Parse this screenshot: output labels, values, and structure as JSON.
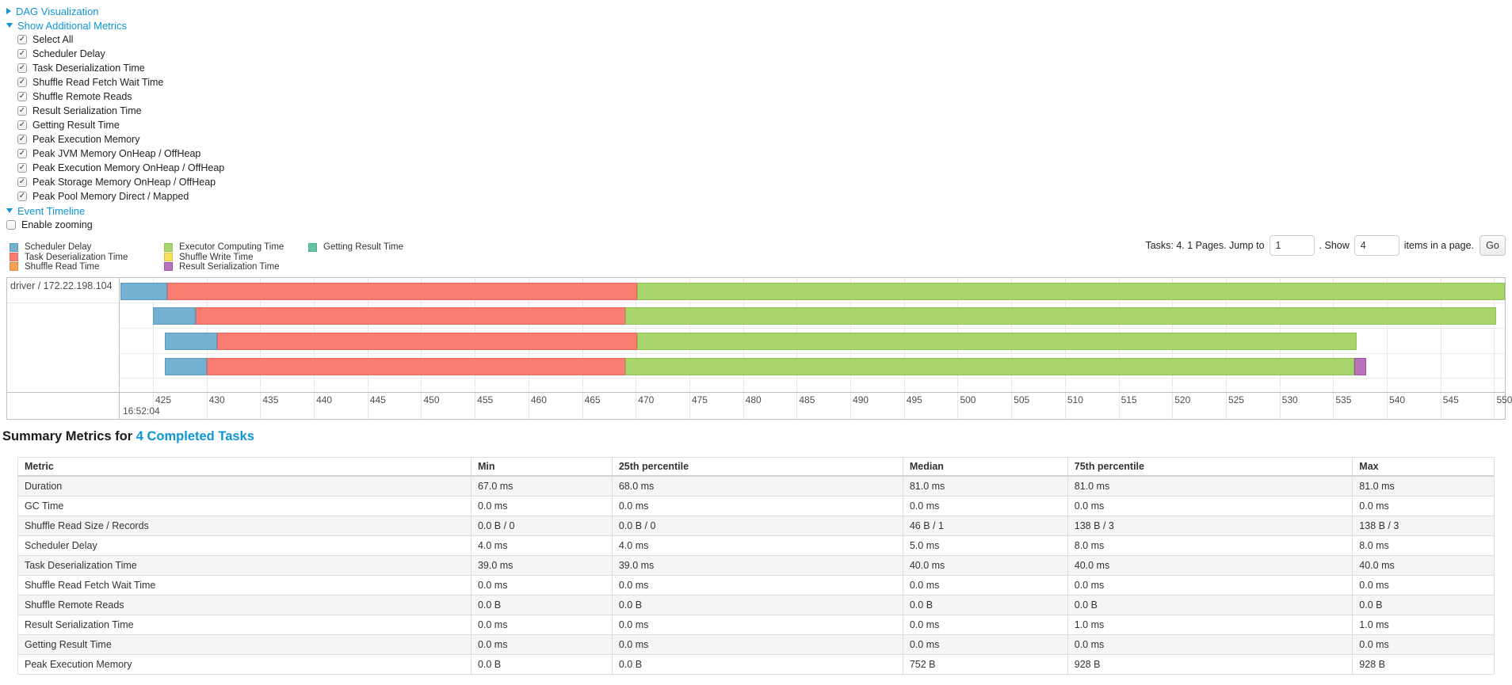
{
  "controls": {
    "dag_label": "DAG Visualization",
    "metrics_label": "Show Additional Metrics",
    "timeline_label": "Event Timeline",
    "enable_zooming_label": "Enable zooming",
    "checkboxes": [
      "Select All",
      "Scheduler Delay",
      "Task Deserialization Time",
      "Shuffle Read Fetch Wait Time",
      "Shuffle Remote Reads",
      "Result Serialization Time",
      "Getting Result Time",
      "Peak Execution Memory",
      "Peak JVM Memory OnHeap / OffHeap",
      "Peak Execution Memory OnHeap / OffHeap",
      "Peak Storage Memory OnHeap / OffHeap",
      "Peak Pool Memory Direct / Mapped"
    ]
  },
  "colors": {
    "link": "#0d96d8",
    "scheduler_delay": {
      "label": "Scheduler Delay",
      "fill": "#74B0D0",
      "border": "#5B9BC2"
    },
    "task_deserialization": {
      "label": "Task Deserialization Time",
      "fill": "#F97D73",
      "border": "#E7685F"
    },
    "shuffle_read": {
      "label": "Shuffle Read Time",
      "fill": "#F7A056",
      "border": "#E0873A"
    },
    "executor_computing": {
      "label": "Executor Computing Time",
      "fill": "#A8D46C",
      "border": "#90C351"
    },
    "shuffle_write": {
      "label": "Shuffle Write Time",
      "fill": "#F4E05A",
      "border": "#DCC83F"
    },
    "result_serialization": {
      "label": "Result Serialization Time",
      "fill": "#B873BC",
      "border": "#9E54A4"
    },
    "getting_result": {
      "label": "Getting Result Time",
      "fill": "#66C3A5",
      "border": "#4FB08D"
    }
  },
  "legend_columns": [
    [
      "scheduler_delay",
      "task_deserialization",
      "shuffle_read"
    ],
    [
      "executor_computing",
      "shuffle_write",
      "result_serialization"
    ],
    [
      "getting_result"
    ]
  ],
  "pagination": {
    "tasks_text": "Tasks: 4. 1 Pages. Jump to",
    "jump_value": "1",
    "show_text": ". Show",
    "show_value": "4",
    "items_text": "items in a page.",
    "go_label": "Go"
  },
  "timeline": {
    "group_label": "driver / 172.22.198.104",
    "axis": {
      "min": 421.9,
      "max": 551.0,
      "ticks": [
        425,
        430,
        435,
        440,
        445,
        450,
        455,
        460,
        465,
        470,
        475,
        480,
        485,
        490,
        495,
        500,
        505,
        510,
        515,
        520,
        525,
        530,
        535,
        540,
        545,
        550
      ],
      "time_label": "16:52:04",
      "time_label_tick": 425
    },
    "bars": [
      {
        "segments": [
          [
            "scheduler_delay",
            422.0,
            426.3
          ],
          [
            "task_deserialization",
            426.3,
            470.1
          ],
          [
            "executor_computing",
            470.1,
            551.0
          ]
        ]
      },
      {
        "segments": [
          [
            "scheduler_delay",
            425.0,
            429.0
          ],
          [
            "task_deserialization",
            429.0,
            469.0
          ],
          [
            "executor_computing",
            469.0,
            550.2
          ]
        ]
      },
      {
        "segments": [
          [
            "scheduler_delay",
            426.1,
            431.0
          ],
          [
            "task_deserialization",
            431.0,
            470.1
          ],
          [
            "executor_computing",
            470.1,
            537.2
          ]
        ]
      },
      {
        "segments": [
          [
            "scheduler_delay",
            426.1,
            430.0
          ],
          [
            "task_deserialization",
            430.0,
            469.0
          ],
          [
            "executor_computing",
            469.0,
            537.0
          ],
          [
            "result_serialization",
            537.0,
            538.1
          ]
        ]
      }
    ]
  },
  "summary": {
    "title_prefix": "Summary Metrics for ",
    "title_link": "4 Completed Tasks",
    "table": {
      "headers": [
        "Metric",
        "Min",
        "25th percentile",
        "Median",
        "75th percentile",
        "Max"
      ],
      "col_widths_pct": [
        30.7,
        9.55,
        19.7,
        11.16,
        19.3,
        9.59
      ],
      "rows": [
        [
          "Duration",
          "67.0 ms",
          "68.0 ms",
          "81.0 ms",
          "81.0 ms",
          "81.0 ms"
        ],
        [
          "GC Time",
          "0.0 ms",
          "0.0 ms",
          "0.0 ms",
          "0.0 ms",
          "0.0 ms"
        ],
        [
          "Shuffle Read Size / Records",
          "0.0 B / 0",
          "0.0 B / 0",
          "46 B / 1",
          "138 B / 3",
          "138 B / 3"
        ],
        [
          "Scheduler Delay",
          "4.0 ms",
          "4.0 ms",
          "5.0 ms",
          "8.0 ms",
          "8.0 ms"
        ],
        [
          "Task Deserialization Time",
          "39.0 ms",
          "39.0 ms",
          "40.0 ms",
          "40.0 ms",
          "40.0 ms"
        ],
        [
          "Shuffle Read Fetch Wait Time",
          "0.0 ms",
          "0.0 ms",
          "0.0 ms",
          "0.0 ms",
          "0.0 ms"
        ],
        [
          "Shuffle Remote Reads",
          "0.0 B",
          "0.0 B",
          "0.0 B",
          "0.0 B",
          "0.0 B"
        ],
        [
          "Result Serialization Time",
          "0.0 ms",
          "0.0 ms",
          "0.0 ms",
          "1.0 ms",
          "1.0 ms"
        ],
        [
          "Getting Result Time",
          "0.0 ms",
          "0.0 ms",
          "0.0 ms",
          "0.0 ms",
          "0.0 ms"
        ],
        [
          "Peak Execution Memory",
          "0.0 B",
          "0.0 B",
          "752 B",
          "928 B",
          "928 B"
        ]
      ]
    }
  }
}
